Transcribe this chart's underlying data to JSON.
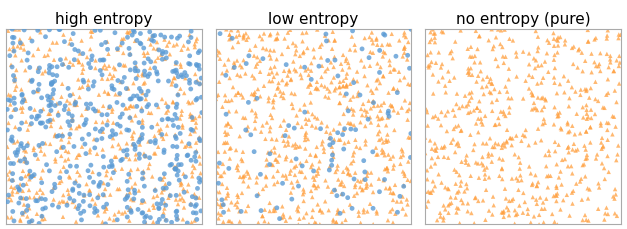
{
  "titles": [
    "high entropy",
    "low entropy",
    "no entropy (pure)"
  ],
  "n_orange": [
    500,
    700,
    600
  ],
  "n_blue": [
    500,
    100,
    0
  ],
  "orange_color": "#FFA040",
  "blue_color": "#5B9BD5",
  "marker_circle": "o",
  "marker_triangle": "^",
  "marker_size_circle": 12,
  "marker_size_triangle": 10,
  "alpha_orange": 0.75,
  "alpha_blue": 0.8,
  "seed": 42,
  "title_fontsize": 11,
  "figsize": [
    6.27,
    2.3
  ],
  "dpi": 100
}
